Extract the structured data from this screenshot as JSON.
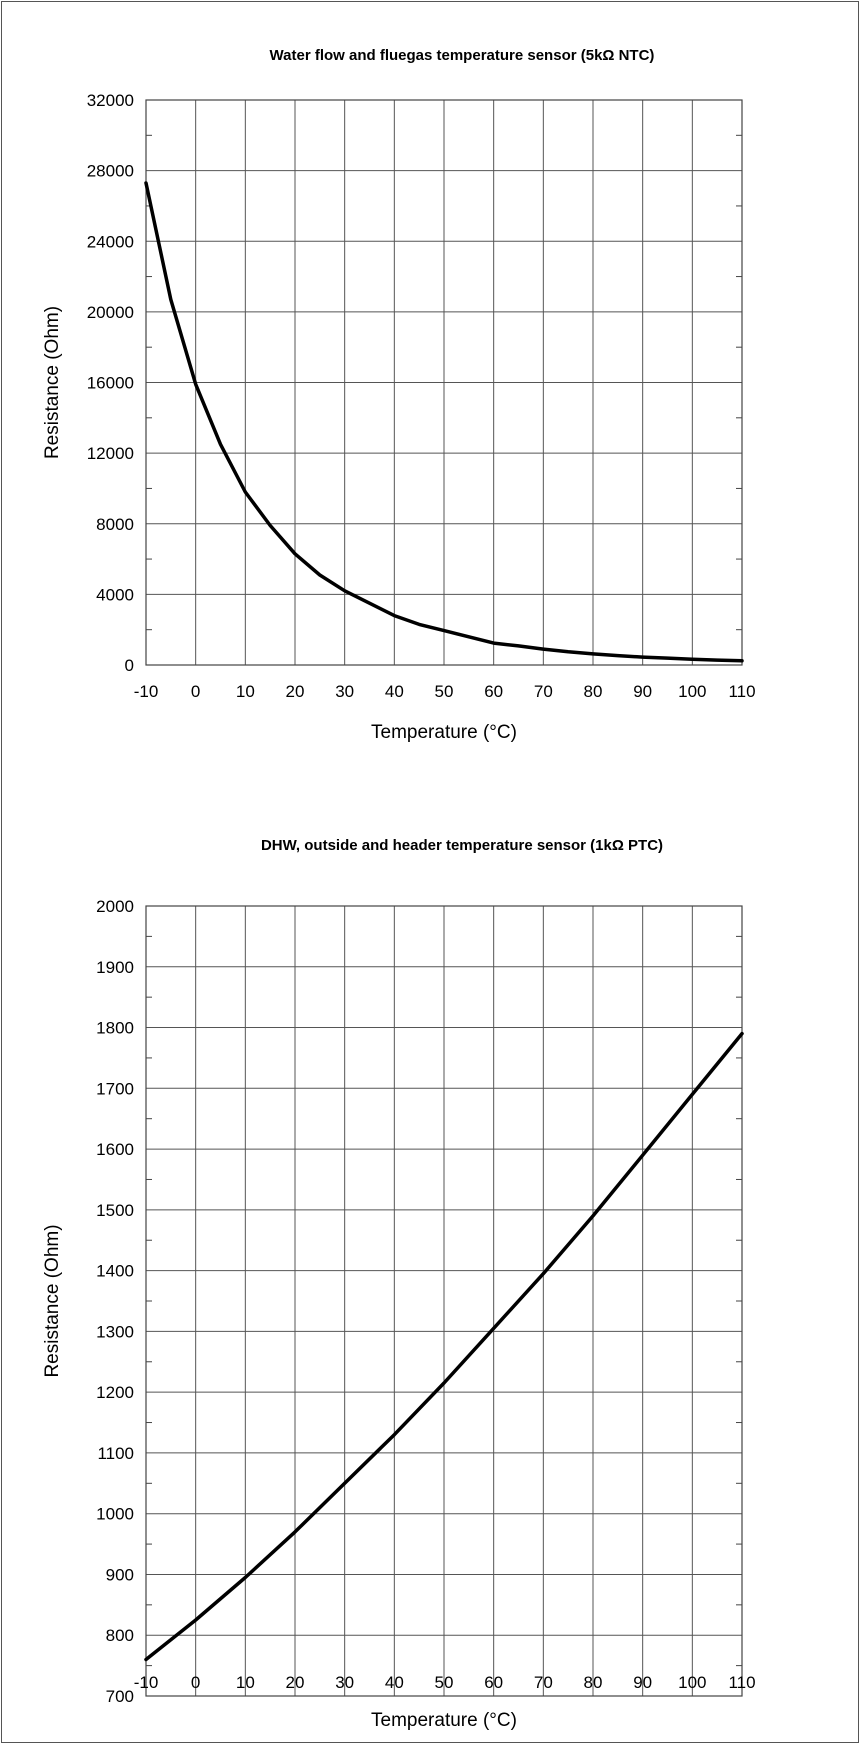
{
  "chart_data": [
    {
      "type": "line",
      "title": "Water flow and fluegas temperature sensor (5kΩ NTC)",
      "xlabel": "Temperature (°C)",
      "ylabel": "Resistance (Ohm)",
      "xlim": [
        -10,
        110
      ],
      "ylim": [
        0,
        32000
      ],
      "x_ticks": [
        -10,
        0,
        10,
        20,
        30,
        40,
        50,
        60,
        70,
        80,
        90,
        100,
        110
      ],
      "y_ticks": [
        0,
        4000,
        8000,
        12000,
        16000,
        20000,
        24000,
        28000,
        32000
      ],
      "grid": true,
      "series": [
        {
          "x": [
            -10,
            -5,
            0,
            5,
            10,
            15,
            20,
            25,
            30,
            35,
            40,
            45,
            50,
            55,
            60,
            65,
            70,
            75,
            80,
            85,
            90,
            95,
            100,
            105,
            110
          ],
          "y": [
            27300,
            20700,
            15900,
            12500,
            9800,
            7900,
            6300,
            5100,
            4200,
            3500,
            2800,
            2300,
            1950,
            1600,
            1240,
            1080,
            900,
            750,
            630,
            530,
            450,
            390,
            330,
            280,
            240
          ]
        }
      ]
    },
    {
      "type": "line",
      "title": "DHW, outside and header temperature sensor (1kΩ PTC)",
      "xlabel": "Temperature (°C)",
      "ylabel": "Resistance (Ohm)",
      "xlim": [
        -10,
        110
      ],
      "ylim": [
        700,
        2000
      ],
      "x_ticks": [
        -10,
        0,
        10,
        20,
        30,
        40,
        50,
        60,
        70,
        80,
        90,
        100,
        110
      ],
      "y_ticks": [
        700,
        800,
        900,
        1000,
        1100,
        1200,
        1300,
        1400,
        1500,
        1600,
        1700,
        1800,
        1900,
        2000
      ],
      "grid": true,
      "series": [
        {
          "x": [
            -10,
            0,
            10,
            20,
            30,
            40,
            50,
            60,
            70,
            80,
            90,
            100,
            110
          ],
          "y": [
            760,
            825,
            895,
            970,
            1050,
            1130,
            1215,
            1305,
            1395,
            1490,
            1590,
            1690,
            1790
          ]
        }
      ]
    }
  ]
}
